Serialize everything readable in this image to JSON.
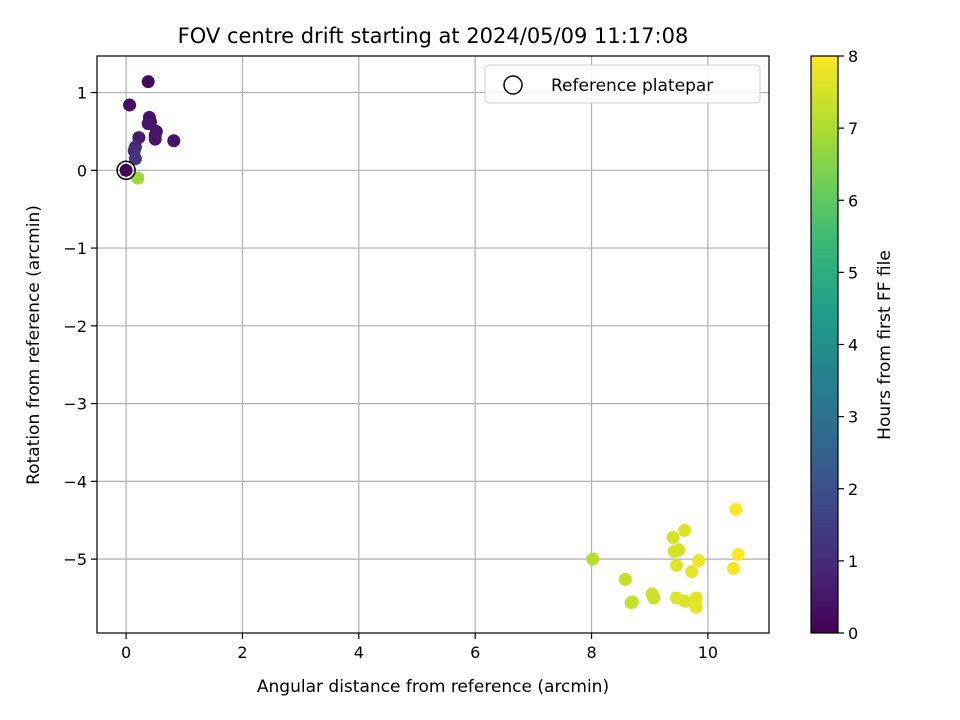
{
  "chart_data": {
    "type": "scatter",
    "title": "FOV centre drift starting at 2024/05/09 11:17:08",
    "xlabel": "Angular distance from reference (arcmin)",
    "ylabel": "Rotation from reference (arcmin)",
    "xlim": [
      -0.5,
      11.05
    ],
    "ylim": [
      -5.95,
      1.47
    ],
    "xticks": [
      0,
      2,
      4,
      6,
      8,
      10
    ],
    "yticks": [
      1,
      0,
      -1,
      -2,
      -3,
      -4,
      -5
    ],
    "grid": true,
    "legend": {
      "position": "top-right",
      "entries": [
        "Reference platepar"
      ]
    },
    "reference_point": {
      "x": 0,
      "y": 0
    },
    "colorbar": {
      "label": "Hours from first FF file",
      "min": 0,
      "max": 8,
      "ticks": [
        0,
        1,
        2,
        3,
        4,
        5,
        6,
        7,
        8
      ],
      "colormap_stops": [
        "#440154",
        "#482878",
        "#3e4989",
        "#31688e",
        "#26828e",
        "#1f9e89",
        "#35b779",
        "#6ece58",
        "#b5de2b",
        "#fde725"
      ]
    },
    "points": [
      {
        "x": 0.0,
        "y": 0.0,
        "hours": 0.0
      },
      {
        "x": 0.38,
        "y": 1.14,
        "hours": 0.2
      },
      {
        "x": 0.06,
        "y": 0.84,
        "hours": 0.3
      },
      {
        "x": 0.4,
        "y": 0.68,
        "hours": 0.4
      },
      {
        "x": 0.42,
        "y": 0.62,
        "hours": 0.4
      },
      {
        "x": 0.38,
        "y": 0.6,
        "hours": 0.5
      },
      {
        "x": 0.52,
        "y": 0.5,
        "hours": 0.5
      },
      {
        "x": 0.5,
        "y": 0.45,
        "hours": 0.5
      },
      {
        "x": 0.5,
        "y": 0.4,
        "hours": 0.5
      },
      {
        "x": 0.82,
        "y": 0.38,
        "hours": 0.4
      },
      {
        "x": 0.22,
        "y": 0.42,
        "hours": 0.6
      },
      {
        "x": 0.16,
        "y": 0.3,
        "hours": 0.9
      },
      {
        "x": 0.14,
        "y": 0.25,
        "hours": 1.0
      },
      {
        "x": 0.16,
        "y": 0.15,
        "hours": 1.2
      },
      {
        "x": 0.2,
        "y": -0.1,
        "hours": 7.0
      },
      {
        "x": 0.2,
        "y": -0.1,
        "hours": 6.8
      },
      {
        "x": 8.02,
        "y": -5.0,
        "hours": 7.1
      },
      {
        "x": 8.58,
        "y": -5.26,
        "hours": 7.3
      },
      {
        "x": 8.7,
        "y": -5.55,
        "hours": 7.3
      },
      {
        "x": 8.68,
        "y": -5.56,
        "hours": 7.3
      },
      {
        "x": 9.04,
        "y": -5.45,
        "hours": 7.4
      },
      {
        "x": 9.07,
        "y": -5.5,
        "hours": 7.4
      },
      {
        "x": 9.4,
        "y": -4.72,
        "hours": 7.5
      },
      {
        "x": 9.42,
        "y": -4.9,
        "hours": 7.5
      },
      {
        "x": 9.5,
        "y": -4.88,
        "hours": 7.5
      },
      {
        "x": 9.6,
        "y": -4.63,
        "hours": 7.6
      },
      {
        "x": 9.46,
        "y": -5.08,
        "hours": 7.6
      },
      {
        "x": 9.46,
        "y": -5.5,
        "hours": 7.6
      },
      {
        "x": 9.6,
        "y": -5.54,
        "hours": 7.6
      },
      {
        "x": 9.72,
        "y": -5.16,
        "hours": 7.7
      },
      {
        "x": 9.8,
        "y": -5.5,
        "hours": 7.7
      },
      {
        "x": 9.8,
        "y": -5.62,
        "hours": 7.7
      },
      {
        "x": 9.84,
        "y": -5.02,
        "hours": 7.8
      },
      {
        "x": 10.44,
        "y": -5.12,
        "hours": 7.9
      },
      {
        "x": 10.48,
        "y": -4.36,
        "hours": 8.0
      },
      {
        "x": 10.52,
        "y": -4.94,
        "hours": 8.0
      }
    ]
  }
}
